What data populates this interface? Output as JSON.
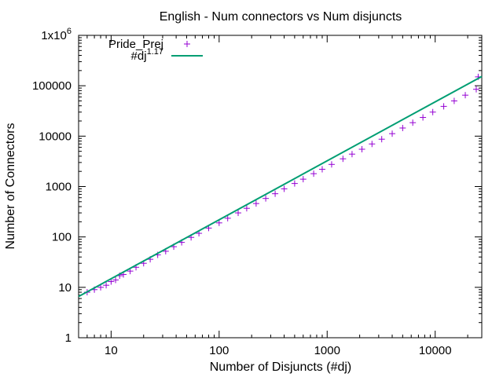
{
  "chart_data": {
    "type": "scatter",
    "title": "English - Num connectors vs Num disjuncts",
    "xlabel": "Number of Disjuncts (#dj)",
    "ylabel": "Number of Connectors",
    "x_scale": "log",
    "y_scale": "log",
    "xlim": [
      5,
      27000
    ],
    "ylim": [
      1,
      1000000
    ],
    "x_ticks": [
      "10",
      "100",
      "1000",
      "10000"
    ],
    "y_ticks": [
      "1",
      "10",
      "100",
      "1000",
      "10000",
      "100000",
      "1x10^6"
    ],
    "y_top_tick": {
      "base": "1x10",
      "exp": "6"
    },
    "grid": false,
    "legend_position": "top-left",
    "series": [
      {
        "name": "Pride_Prej",
        "marker": "+",
        "color": "#9400d3",
        "points": [
          [
            6,
            8
          ],
          [
            7,
            9
          ],
          [
            8,
            10
          ],
          [
            9,
            11
          ],
          [
            10,
            13
          ],
          [
            11,
            14
          ],
          [
            12,
            17
          ],
          [
            13,
            18
          ],
          [
            15,
            21
          ],
          [
            17,
            25
          ],
          [
            20,
            30
          ],
          [
            23,
            36
          ],
          [
            27,
            44
          ],
          [
            32,
            52
          ],
          [
            38,
            64
          ],
          [
            45,
            78
          ],
          [
            55,
            98
          ],
          [
            65,
            118
          ],
          [
            80,
            150
          ],
          [
            100,
            190
          ],
          [
            120,
            235
          ],
          [
            150,
            300
          ],
          [
            180,
            370
          ],
          [
            220,
            460
          ],
          [
            270,
            580
          ],
          [
            330,
            720
          ],
          [
            400,
            900
          ],
          [
            500,
            1150
          ],
          [
            600,
            1400
          ],
          [
            750,
            1800
          ],
          [
            900,
            2200
          ],
          [
            1100,
            2750
          ],
          [
            1400,
            3550
          ],
          [
            1700,
            4400
          ],
          [
            2100,
            5500
          ],
          [
            2600,
            7000
          ],
          [
            3200,
            8700
          ],
          [
            4000,
            11200
          ],
          [
            5000,
            14500
          ],
          [
            6200,
            18500
          ],
          [
            7700,
            23500
          ],
          [
            9500,
            30000
          ],
          [
            12000,
            39000
          ],
          [
            15000,
            50000
          ],
          [
            19000,
            65000
          ],
          [
            24000,
            85000
          ],
          [
            25000,
            150000
          ]
        ]
      },
      {
        "name": "#dj^1.17",
        "name_parts": {
          "base": "#dj",
          "exp": "1.17"
        },
        "type": "line",
        "color": "#009e73",
        "exponent": 1.17
      }
    ]
  }
}
